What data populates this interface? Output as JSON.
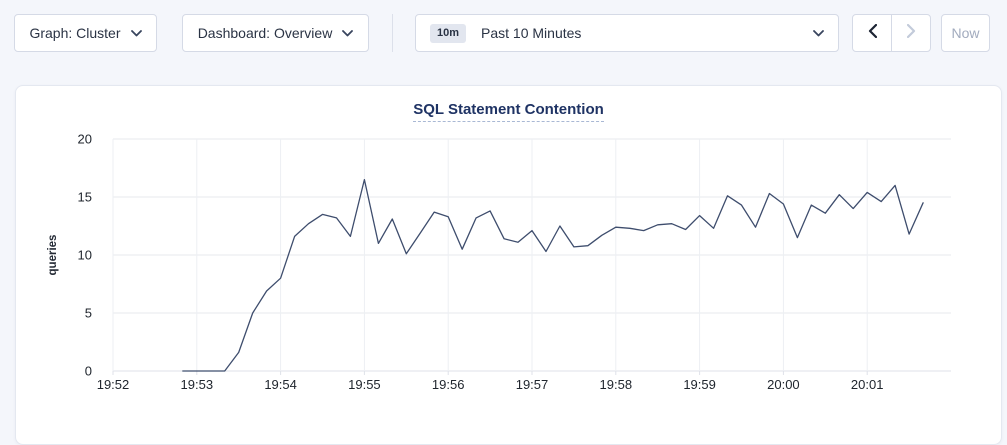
{
  "toolbar": {
    "graph_dropdown_label": "Graph: Cluster",
    "dashboard_dropdown_label": "Dashboard: Overview",
    "time_range": {
      "badge": "10m",
      "label": "Past 10 Minutes"
    },
    "now_button_label": "Now"
  },
  "chart_data": {
    "type": "line",
    "title": "SQL Statement Contention",
    "xlabel": "",
    "ylabel": "queries",
    "ylim": [
      0,
      20
    ],
    "y_ticks": [
      0,
      5,
      10,
      15,
      20
    ],
    "x_tick_labels": [
      "19:52",
      "19:53",
      "19:54",
      "19:55",
      "19:56",
      "19:57",
      "19:58",
      "19:59",
      "20:00",
      "20:01"
    ],
    "x_axis_start": "19:52",
    "x_axis_end": "20:02",
    "grid": true,
    "legend_position": "none",
    "series": [
      {
        "name": "queries",
        "start_time": "19:52:50",
        "sample_interval_seconds": 10,
        "values": [
          0,
          0,
          0,
          0,
          1.6,
          5,
          6.9,
          8,
          11.6,
          12.7,
          13.5,
          13.2,
          11.6,
          16.5,
          11,
          13.1,
          10.1,
          11.9,
          13.7,
          13.3,
          10.5,
          13.2,
          13.8,
          11.4,
          11.1,
          12.1,
          10.3,
          12.5,
          10.7,
          10.8,
          11.7,
          12.4,
          12.3,
          12.1,
          12.6,
          12.7,
          12.2,
          13.4,
          12.3,
          15.1,
          14.3,
          12.4,
          15.3,
          14.4,
          11.5,
          14.3,
          13.6,
          15.2,
          14,
          15.4,
          14.6,
          16,
          11.8,
          14.5
        ]
      }
    ],
    "colors": {
      "line": "#3e4d6d"
    }
  },
  "colors": {
    "page_bg": "#f4f6fb",
    "control_border": "#d5dae6",
    "text_dark": "#2a3344",
    "title_navy": "#1f3364",
    "disabled": "#c3cbda",
    "badge_bg": "#e2e6ef"
  }
}
